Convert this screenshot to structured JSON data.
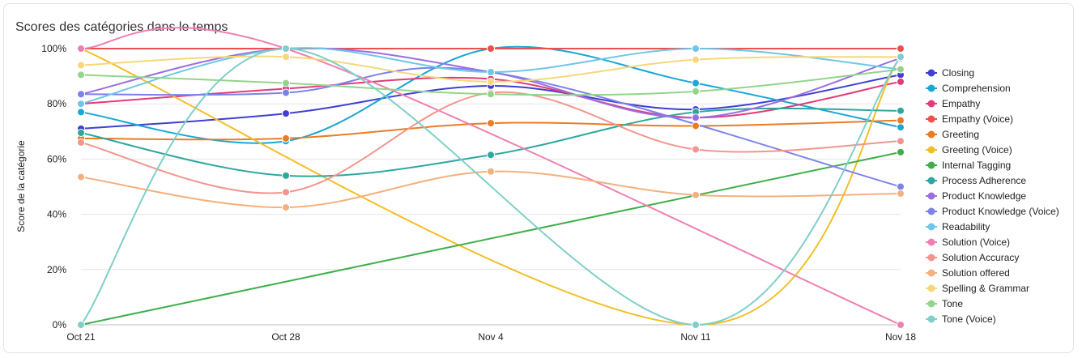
{
  "card": {
    "title": "Scores des catégories dans le temps"
  },
  "chart_data": {
    "type": "line",
    "title": "Scores des catégories dans le temps",
    "ylabel": "Score de la catégorie",
    "xlabel": "",
    "x": [
      "Oct 21",
      "Oct 28",
      "Nov 4",
      "Nov 11",
      "Nov 18"
    ],
    "ylim": [
      0,
      100
    ],
    "yticks": [
      "0%",
      "20%",
      "40%",
      "60%",
      "80%",
      "100%"
    ],
    "grid": true,
    "legend": "right",
    "series": [
      {
        "name": "Closing",
        "color": "#3f3fd1",
        "values": [
          71,
          76.5,
          86.5,
          78,
          90.5
        ]
      },
      {
        "name": "Comprehension",
        "color": "#1ba6d6",
        "values": [
          77,
          66.5,
          100,
          87.5,
          71.5
        ]
      },
      {
        "name": "Empathy",
        "color": "#e23a7a",
        "values": [
          80,
          85.5,
          89,
          75,
          88
        ]
      },
      {
        "name": "Empathy (Voice)",
        "color": "#ee4e4e",
        "values": [
          100,
          100,
          100,
          100,
          100
        ]
      },
      {
        "name": "Greeting",
        "color": "#ea7c26",
        "values": [
          67.5,
          67.5,
          73,
          72,
          74
        ]
      },
      {
        "name": "Greeting (Voice)",
        "color": "#f2be27",
        "values": [
          100,
          null,
          null,
          0,
          97
        ]
      },
      {
        "name": "Internal Tagging",
        "color": "#3fae49",
        "values": [
          0,
          null,
          null,
          null,
          62.5
        ]
      },
      {
        "name": "Process Adherence",
        "color": "#2ea79f",
        "values": [
          69.5,
          54,
          61.5,
          77,
          77.5
        ]
      },
      {
        "name": "Product Knowledge",
        "color": "#9b6de0",
        "values": [
          83.5,
          100,
          91.5,
          75,
          96.5
        ]
      },
      {
        "name": "Product Knowledge (Voice)",
        "color": "#7b82ea",
        "values": [
          83.5,
          84,
          91.5,
          null,
          50
        ]
      },
      {
        "name": "Readability",
        "color": "#6fc6e6",
        "values": [
          80,
          100,
          91.5,
          100,
          92.5
        ]
      },
      {
        "name": "Solution (Voice)",
        "color": "#ef7fb1",
        "values": [
          100,
          100,
          null,
          null,
          0
        ]
      },
      {
        "name": "Solution Accuracy",
        "color": "#f3958f",
        "values": [
          66,
          48,
          84,
          63.5,
          66.5
        ]
      },
      {
        "name": "Solution offered",
        "color": "#f4b07e",
        "values": [
          53.5,
          42.5,
          55.5,
          47,
          47.5
        ]
      },
      {
        "name": "Spelling & Grammar",
        "color": "#f6d77a",
        "values": [
          94,
          97,
          88,
          96,
          97
        ]
      },
      {
        "name": "Tone",
        "color": "#93d48c",
        "values": [
          90.5,
          87.5,
          83.5,
          84.5,
          92.5
        ]
      },
      {
        "name": "Tone (Voice)",
        "color": "#7fcfc8",
        "values": [
          0,
          100,
          null,
          0,
          97
        ]
      }
    ]
  }
}
